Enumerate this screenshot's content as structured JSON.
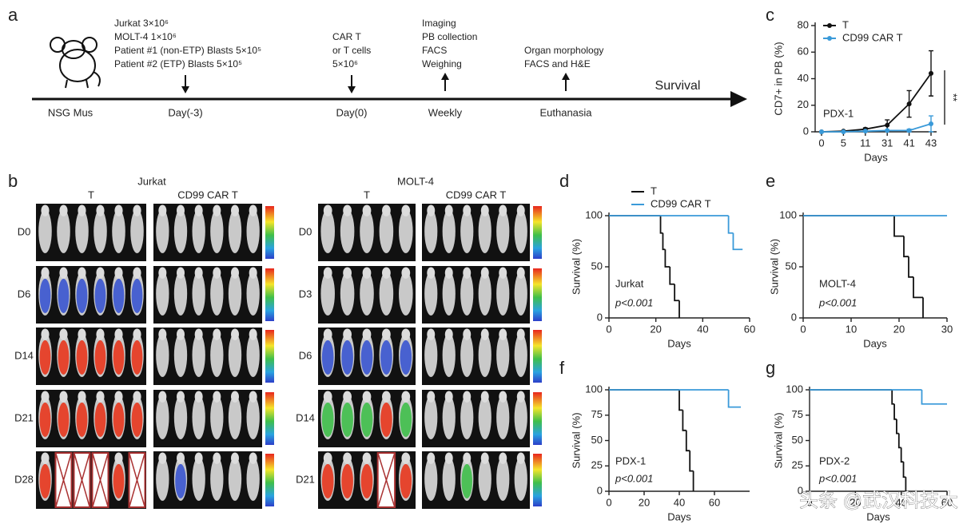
{
  "panel_a": {
    "panel_label": "a",
    "host": "NSG Mus",
    "end_label": "Survival",
    "steps": [
      {
        "lines": [
          "Jurkat    3×10⁶",
          "MOLT-4   1×10⁶",
          "Patient #1 (non-ETP)  Blasts 5×10⁵",
          "Patient #2 (ETP)  Blasts 5×10⁵"
        ],
        "label": "Day(-3)"
      },
      {
        "lines": [
          "CAR T",
          "or T cells",
          "5×10⁶"
        ],
        "label": "Day(0)"
      },
      {
        "lines": [
          "Imaging",
          "PB collection",
          "FACS",
          "Weighing"
        ],
        "label": "Weekly"
      },
      {
        "lines": [
          "Organ morphology",
          "FACS and H&E"
        ],
        "label": "Euthanasia"
      }
    ]
  },
  "panel_b": {
    "panel_label": "b",
    "groups": [
      {
        "title": "Jurkat",
        "arms": [
          "T",
          "CD99 CAR T"
        ],
        "days": [
          "D0",
          "D6",
          "D14",
          "D21",
          "D28"
        ]
      },
      {
        "title": "MOLT-4",
        "arms": [
          "T",
          "CD99 CAR T"
        ],
        "days": [
          "D0",
          "D3",
          "D6",
          "D14",
          "D21"
        ]
      }
    ]
  },
  "chart_data": [
    {
      "type": "line",
      "panel_label": "c",
      "xlabel": "Days",
      "ylabel": "CD7+ in PB (%)",
      "annotations": [
        "PDX-1",
        "**"
      ],
      "categories": [
        "0",
        "5",
        "11",
        "31",
        "41",
        "43"
      ],
      "series": [
        {
          "name": "T",
          "color": "#111111",
          "values": [
            0,
            0.5,
            2,
            5,
            21,
            44
          ],
          "errors": [
            0,
            0,
            1,
            4,
            10,
            17
          ]
        },
        {
          "name": "CD99 CAR T",
          "color": "#3a9ad9",
          "values": [
            0,
            0,
            0.5,
            1,
            1,
            6
          ],
          "errors": [
            0,
            0,
            0,
            0,
            1,
            6
          ]
        }
      ],
      "ylim": [
        0,
        80
      ],
      "yticks": [
        0,
        20,
        40,
        60,
        80
      ]
    },
    {
      "type": "step",
      "panel_label": "d",
      "xlabel": "Days",
      "ylabel": "Survival (%)",
      "annotations": [
        "Jurkat",
        "p<0.001"
      ],
      "series": [
        {
          "name": "T",
          "color": "#111111",
          "x": [
            0,
            22,
            23,
            24,
            26,
            28,
            30
          ],
          "values": [
            100,
            83,
            67,
            50,
            33,
            17,
            0
          ]
        },
        {
          "name": "CD99 CAR T",
          "color": "#3a9ad9",
          "x": [
            0,
            51,
            53,
            57
          ],
          "values": [
            100,
            83,
            67,
            67
          ]
        }
      ],
      "xlim": [
        0,
        60
      ],
      "xticks": [
        0,
        20,
        40,
        60
      ],
      "ylim": [
        0,
        100
      ],
      "yticks": [
        0,
        50,
        100
      ]
    },
    {
      "type": "step",
      "panel_label": "e",
      "xlabel": "Days",
      "ylabel": "Survival (%)",
      "annotations": [
        "MOLT-4",
        "p<0.001"
      ],
      "series": [
        {
          "name": "T",
          "color": "#111111",
          "x": [
            0,
            19,
            21,
            22,
            23,
            25
          ],
          "values": [
            100,
            80,
            60,
            40,
            20,
            0
          ]
        },
        {
          "name": "CD99 CAR T",
          "color": "#3a9ad9",
          "x": [
            0,
            30
          ],
          "values": [
            100,
            100
          ]
        }
      ],
      "xlim": [
        0,
        30
      ],
      "xticks": [
        0,
        10,
        20,
        30
      ],
      "ylim": [
        0,
        100
      ],
      "yticks": [
        0,
        50,
        100
      ]
    },
    {
      "type": "step",
      "panel_label": "f",
      "xlabel": "Days",
      "ylabel": "Survival (%)",
      "annotations": [
        "PDX-1",
        "p<0.001"
      ],
      "series": [
        {
          "name": "T",
          "color": "#111111",
          "x": [
            0,
            40,
            42,
            44,
            46,
            48
          ],
          "values": [
            100,
            80,
            60,
            40,
            20,
            0
          ]
        },
        {
          "name": "CD99 CAR T",
          "color": "#3a9ad9",
          "x": [
            0,
            68,
            75
          ],
          "values": [
            100,
            83,
            83
          ]
        }
      ],
      "xlim": [
        0,
        80
      ],
      "xticks": [
        0,
        20,
        40,
        60
      ],
      "ylim": [
        0,
        100
      ],
      "yticks": [
        0,
        25,
        50,
        75,
        100
      ]
    },
    {
      "type": "step",
      "panel_label": "g",
      "xlabel": "Days",
      "ylabel": "Survival (%)",
      "annotations": [
        "PDX-2",
        "p<0.001"
      ],
      "series": [
        {
          "name": "T",
          "color": "#111111",
          "x": [
            0,
            36,
            37,
            38,
            39,
            40,
            41,
            42
          ],
          "values": [
            100,
            86,
            71,
            57,
            43,
            29,
            14,
            0
          ]
        },
        {
          "name": "CD99 CAR T",
          "color": "#3a9ad9",
          "x": [
            0,
            49,
            60
          ],
          "values": [
            100,
            86,
            86
          ]
        }
      ],
      "xlim": [
        0,
        60
      ],
      "xticks": [
        0,
        20,
        40,
        60
      ],
      "ylim": [
        0,
        100
      ],
      "yticks": [
        0,
        25,
        50,
        75,
        100
      ]
    }
  ],
  "watermark": "头条 @武汉科技大学"
}
